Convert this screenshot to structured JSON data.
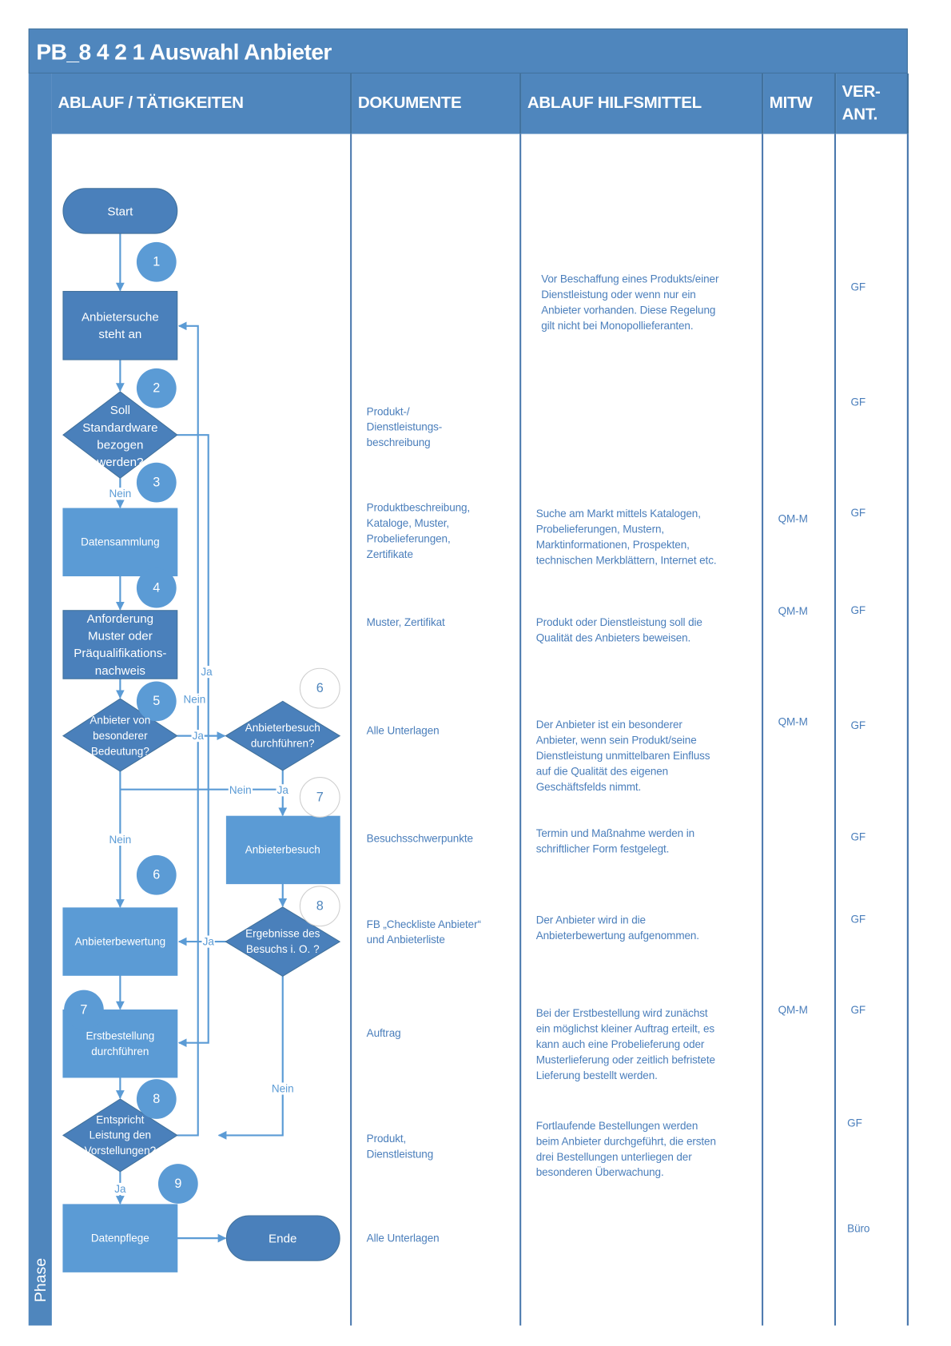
{
  "title": "PB_8 4 2 1 Auswahl Anbieter",
  "phase_label": "Phase",
  "headers": {
    "ablauf": "ABLAUF / TÄTIGKEITEN",
    "dokumente": "DOKUMENTE",
    "hilfsmittel": "ABLAUF HILFSMITTEL",
    "mitw": "MITW",
    "verant": "VER-\nANT."
  },
  "colors": {
    "header": "#4f86bd",
    "shape_dark": "#4a80bb",
    "shape_light": "#5b9bd5",
    "text": "#4a7ebb"
  },
  "flow": {
    "start": "Start",
    "anbietersuche": "Anbietersuche\nsteht an",
    "soll": "Soll\nStandardware\nbezogen\nwerden?",
    "datensammlung": "Datensammlung",
    "anforderung": "Anforderung\nMuster oder\nPräqualifikations-\nnachweis",
    "besondere": "Anbieter von\nbesonderer\nBedeutung?",
    "besuch_frage": "Anbieterbesuch\ndurchführen?",
    "anbieterbesuch": "Anbieterbesuch",
    "ergebnisse": "Ergebnisse des\nBesuchs i. O. ?",
    "bewertung": "Anbieterbewertung",
    "erstbestellung": "Erstbestellung\ndurchführen",
    "entspricht": "Entspricht\nLeistung den\nVorstellungen?",
    "datenpflege": "Datenpflege",
    "ende": "Ende",
    "steps": [
      "1",
      "2",
      "3",
      "4",
      "5",
      "6",
      "7",
      "8",
      "9"
    ],
    "side_steps": [
      "6",
      "7",
      "8"
    ],
    "labels": {
      "ja": "Ja",
      "nein": "Nein"
    }
  },
  "dokumente": [
    "Produkt-/\nDienstleistungs-\nbeschreibung",
    "Produktbeschreibung,\nKataloge, Muster,\nProbelieferungen,\nZertifikate",
    "Muster, Zertifikat",
    "Alle Unterlagen",
    "Besuchsschwerpunkte",
    "FB „Checkliste Anbieter“\nund Anbieterliste",
    "Auftrag",
    "Produkt,\nDienstleistung",
    "Alle Unterlagen"
  ],
  "hilfsmittel": [
    "Vor Beschaffung eines Produkts/einer\nDienstleistung oder wenn nur ein\nAnbieter vorhanden. Diese Regelung\ngilt nicht bei Monopollieferanten.",
    "Suche am Markt mittels Katalogen,\nProbelieferungen, Mustern,\nMarktinformationen, Prospekten,\ntechnischen Merkblättern, Internet etc.",
    "Produkt oder Dienstleistung soll die\nQualität des Anbieters beweisen.",
    "Der Anbieter ist ein besonderer\nAnbieter, wenn sein Produkt/seine\nDienstleistung unmittelbaren Einfluss\nauf die Qualität des eigenen\nGeschäftsfelds nimmt.",
    "Termin und Maßnahme werden in\nschriftlicher Form festgelegt.",
    "Der Anbieter wird in die\nAnbieterbewertung aufgenommen.",
    "Bei der Erstbestellung wird zunächst\nein möglichst kleiner Auftrag erteilt, es\nkann auch eine Probelieferung oder\nMusterlieferung oder zeitlich befristete\nLieferung bestellt werden.",
    "Fortlaufende Bestellungen werden\nbeim Anbieter durchgeführt, die ersten\ndrei Bestellungen unterliegen der\nbesonderen Überwachung."
  ],
  "mitw": [
    "QM-M",
    "QM-M",
    "QM-M",
    "QM-M"
  ],
  "verant": [
    "GF",
    "GF",
    "GF",
    "GF",
    "GF",
    "GF",
    "GF",
    "GF",
    "GF",
    "Büro"
  ]
}
